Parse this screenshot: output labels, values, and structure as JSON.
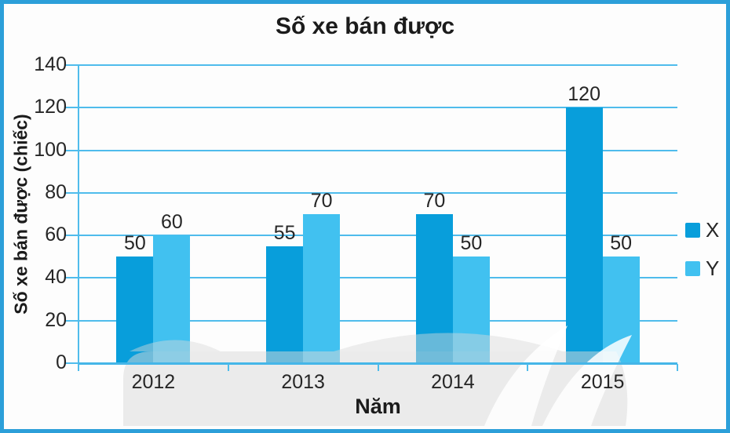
{
  "chart_data": {
    "type": "bar",
    "title": "Số xe bán được",
    "xlabel": "Năm",
    "ylabel": "Số xe bán được (chiếc)",
    "categories": [
      "2012",
      "2013",
      "2014",
      "2015"
    ],
    "series": [
      {
        "name": "X",
        "color": "#089EDB",
        "values": [
          50,
          55,
          70,
          120
        ]
      },
      {
        "name": "Y",
        "color": "#41C1F0",
        "values": [
          60,
          70,
          50,
          50
        ]
      }
    ],
    "ylim": [
      0,
      140
    ],
    "yticks": [
      0,
      20,
      40,
      60,
      80,
      100,
      120,
      140
    ],
    "grid": true,
    "legend_position": "right",
    "bar_value_labels_shown": true
  },
  "colors": {
    "frame_border": "#2C9FD9",
    "gridline": "#4FBCEC",
    "axis": "#45B6E8",
    "series_x": "#089EDB",
    "series_y": "#41C1F0",
    "text": "#262626",
    "watermark": "#D9D9D9"
  }
}
